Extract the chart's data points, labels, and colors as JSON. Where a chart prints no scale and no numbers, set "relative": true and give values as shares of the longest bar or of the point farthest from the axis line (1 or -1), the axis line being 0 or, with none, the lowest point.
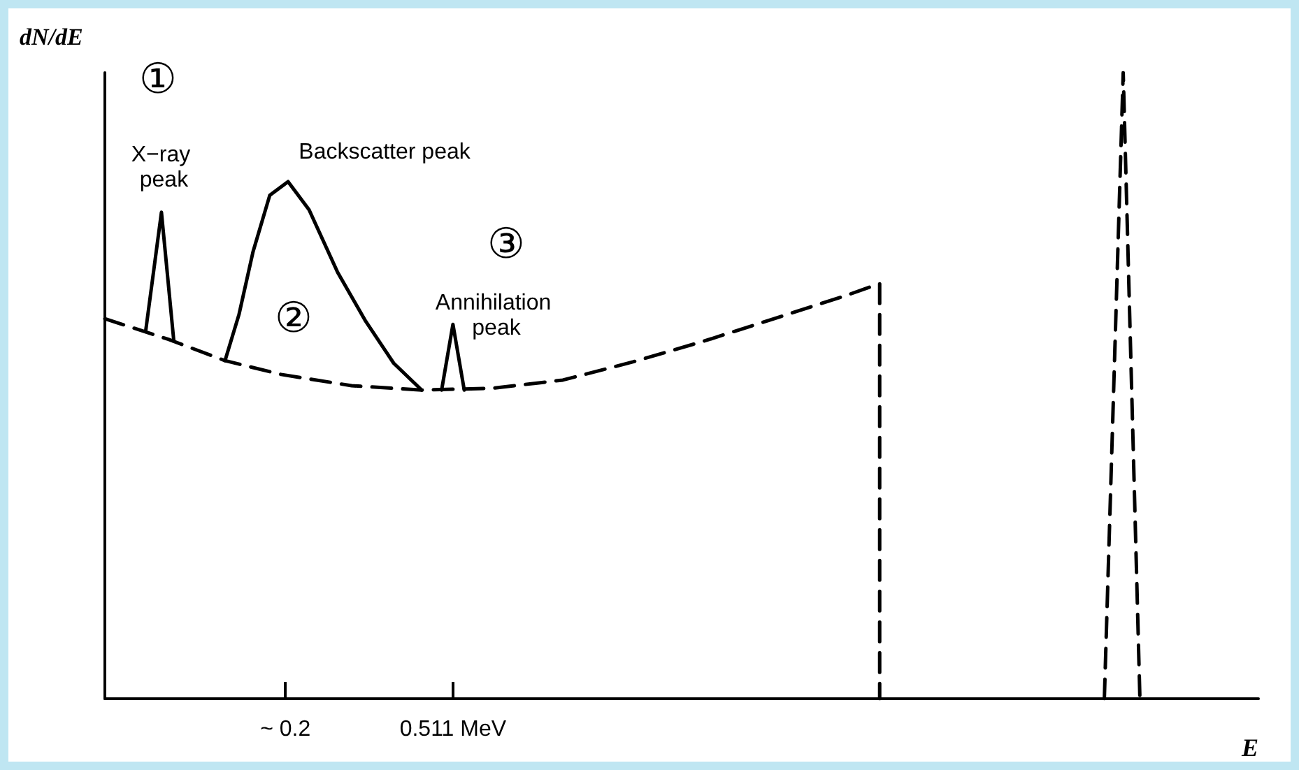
{
  "chart_data": {
    "type": "line",
    "relative": true,
    "xlabel": "E",
    "ylabel": "dN/dE",
    "tick_labels": "x",
    "marker": "none",
    "xlim": [
      -0.135,
      2.006
    ],
    "xticks": [
      {
        "value": 0.2,
        "label": "~ 0.2"
      },
      {
        "value": 0.511,
        "label": "0.511 MeV"
      }
    ],
    "series": [
      {
        "color": "#000000",
        "line_style": "dashed",
        "x": [
          -0.135,
          -0.017,
          0.088,
          0.192,
          0.323,
          0.453,
          0.584,
          0.715,
          0.845,
          0.976,
          1.107,
          1.237,
          1.303,
          1.303
        ],
        "values": [
          0.607,
          0.574,
          0.54,
          0.518,
          0.5,
          0.493,
          0.496,
          0.509,
          0.538,
          0.571,
          0.607,
          0.643,
          0.663,
          0
        ]
      },
      {
        "color": "#000000",
        "line_style": "solid",
        "x": [
          -0.059,
          -0.03,
          -0.007
        ],
        "values": [
          0.589,
          0.777,
          0.571
        ]
      },
      {
        "color": "#000000",
        "line_style": "solid",
        "x": [
          0.088,
          0.114,
          0.14,
          0.171,
          0.205,
          0.244,
          0.297,
          0.349,
          0.401,
          0.453
        ],
        "values": [
          0.54,
          0.614,
          0.714,
          0.804,
          0.826,
          0.781,
          0.681,
          0.603,
          0.536,
          0.493
        ]
      },
      {
        "color": "#000000",
        "line_style": "solid",
        "x": [
          0.49,
          0.511,
          0.532
        ],
        "values": [
          0.493,
          0.598,
          0.493
        ]
      },
      {
        "color": "#000000",
        "line_style": "dashed",
        "x": [
          1.72,
          1.755,
          1.786
        ],
        "values": [
          0,
          1,
          0
        ]
      }
    ],
    "annotations": [
      "①",
      "X−ray peak",
      "Backscatter peak",
      "②",
      "③",
      "Annihilation peak"
    ]
  }
}
